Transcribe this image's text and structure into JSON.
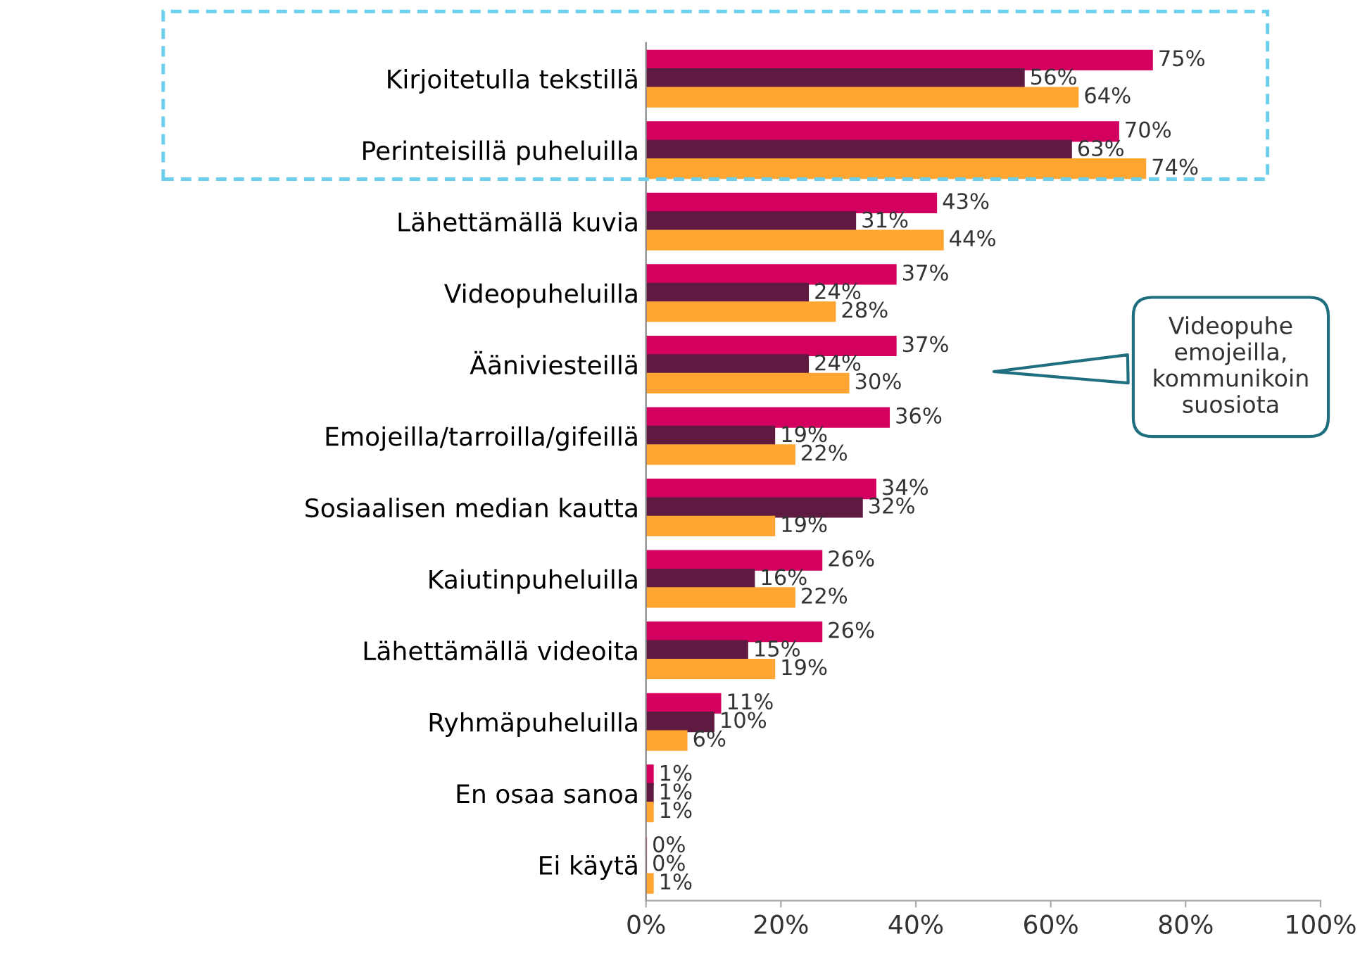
{
  "chart_data": {
    "type": "bar",
    "orientation": "horizontal",
    "categories": [
      "Kirjoitetulla tekstillä",
      "Perinteisillä puheluilla",
      "Lähettämällä kuvia",
      "Videopuheluilla",
      "Ääniviesteillä",
      "Emojeilla/tarroilla/gifeillä",
      "Sosiaalisen median kautta",
      "Kaiutinpuheluilla",
      "Lähettämällä videoita",
      "Ryhmäpuheluilla",
      "En osaa sanoa",
      "Ei käytä"
    ],
    "series": [
      {
        "color": "#d40060",
        "values": [
          75,
          70,
          43,
          37,
          37,
          36,
          34,
          26,
          26,
          11,
          1,
          0
        ],
        "value_labels": [
          "75%",
          "70%",
          "43%",
          "37%",
          "37%",
          "36%",
          "34%",
          "26%",
          "26%",
          "11%",
          "1%",
          "0%"
        ]
      },
      {
        "color": "#5e1a40",
        "values": [
          56,
          63,
          31,
          24,
          24,
          19,
          32,
          16,
          15,
          10,
          1,
          0
        ],
        "value_labels": [
          "56%",
          "63%",
          "31%",
          "24%",
          "24%",
          "19%",
          "32%",
          "16%",
          "15%",
          "10%",
          "1%",
          "0%"
        ]
      },
      {
        "color": "#ffa632",
        "values": [
          64,
          74,
          44,
          28,
          30,
          22,
          19,
          22,
          19,
          6,
          1,
          1
        ],
        "value_labels": [
          "64%",
          "74%",
          "44%",
          "28%",
          "30%",
          "22%",
          "19%",
          "22%",
          "19%",
          "6%",
          "1%",
          "1%"
        ]
      }
    ],
    "xlim": [
      0,
      100
    ],
    "xticks": [
      {
        "value": 0,
        "label": "0%"
      },
      {
        "value": 20,
        "label": "20%"
      },
      {
        "value": 40,
        "label": "40%"
      },
      {
        "value": 60,
        "label": "60%"
      },
      {
        "value": 80,
        "label": "80%"
      },
      {
        "value": 100,
        "label": "100%"
      }
    ],
    "grid": false,
    "legend": false,
    "annotations": [
      "Videopuhe\nemojeilla,\nkommunikoin\nsuosiota"
    ]
  }
}
